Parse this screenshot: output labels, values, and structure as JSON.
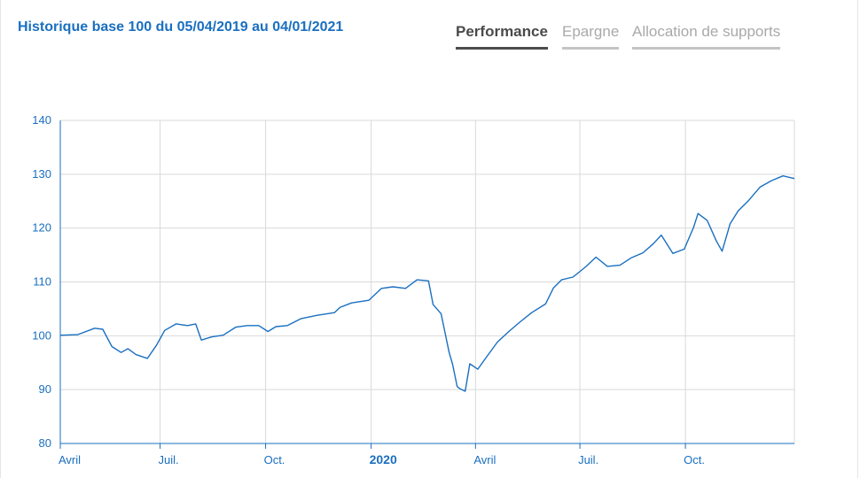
{
  "header": {
    "title": "Historique base 100 du 05/04/2019 au 04/01/2021",
    "tabs": [
      {
        "label": "Performance",
        "active": true
      },
      {
        "label": "Epargne",
        "active": false
      },
      {
        "label": "Allocation de supports",
        "active": false
      }
    ]
  },
  "colors": {
    "line": "#1a6fc0",
    "grid": "#d9d9d9",
    "axis_text": "#1a6fc0"
  },
  "chart_data": {
    "type": "line",
    "title": "Historique base 100 du 05/04/2019 au 04/01/2021",
    "xlabel": "",
    "ylabel": "",
    "ylim": [
      80,
      140
    ],
    "xlim": [
      "2019-04-05",
      "2021-01-04"
    ],
    "grid": true,
    "y_ticks": [
      80,
      90,
      100,
      110,
      120,
      130,
      140
    ],
    "x_ticks": [
      {
        "label": "Avril",
        "date": "2019-04-01",
        "bold": false
      },
      {
        "label": "Juil.",
        "date": "2019-07-01",
        "bold": false
      },
      {
        "label": "Oct.",
        "date": "2019-10-01",
        "bold": false
      },
      {
        "label": "2020",
        "date": "2020-01-01",
        "bold": true
      },
      {
        "label": "Avril",
        "date": "2020-04-01",
        "bold": false
      },
      {
        "label": "Juil.",
        "date": "2020-07-01",
        "bold": false
      },
      {
        "label": "Oct.",
        "date": "2020-10-01",
        "bold": false
      }
    ],
    "series": [
      {
        "x": [
          "2019-04-05",
          "2019-04-20",
          "2019-05-05",
          "2019-05-12",
          "2019-05-20",
          "2019-05-28",
          "2019-06-03",
          "2019-06-10",
          "2019-06-20",
          "2019-06-28",
          "2019-07-05",
          "2019-07-15",
          "2019-07-25",
          "2019-08-01",
          "2019-08-06",
          "2019-08-15",
          "2019-08-25",
          "2019-09-05",
          "2019-09-15",
          "2019-09-25",
          "2019-10-03",
          "2019-10-10",
          "2019-10-20",
          "2019-11-01",
          "2019-11-15",
          "2019-11-30",
          "2019-12-05",
          "2019-12-15",
          "2019-12-30",
          "2020-01-10",
          "2020-01-20",
          "2020-01-31",
          "2020-02-10",
          "2020-02-20",
          "2020-02-24",
          "2020-03-02",
          "2020-03-09",
          "2020-03-12",
          "2020-03-16",
          "2020-03-18",
          "2020-03-23",
          "2020-03-27",
          "2020-04-03",
          "2020-04-09",
          "2020-04-20",
          "2020-04-30",
          "2020-05-10",
          "2020-05-20",
          "2020-06-01",
          "2020-06-08",
          "2020-06-15",
          "2020-06-25",
          "2020-07-06",
          "2020-07-15",
          "2020-07-25",
          "2020-08-05",
          "2020-08-15",
          "2020-08-25",
          "2020-09-03",
          "2020-09-10",
          "2020-09-20",
          "2020-09-30",
          "2020-10-08",
          "2020-10-12",
          "2020-10-20",
          "2020-10-28",
          "2020-11-02",
          "2020-11-09",
          "2020-11-16",
          "2020-11-25",
          "2020-12-05",
          "2020-12-15",
          "2020-12-25",
          "2021-01-04"
        ],
        "y": [
          100.1,
          100.2,
          101.4,
          101.2,
          98,
          96.9,
          97.6,
          96.5,
          95.8,
          98.3,
          101,
          102.2,
          101.9,
          102.2,
          99.2,
          99.8,
          100.1,
          101.6,
          101.9,
          101.9,
          100.8,
          101.7,
          101.9,
          103.2,
          103.8,
          104.3,
          105.3,
          106.1,
          106.6,
          108.8,
          109.1,
          108.8,
          110.4,
          110.2,
          105.8,
          104.1,
          96.9,
          94.7,
          90.6,
          90.2,
          89.7,
          94.8,
          93.8,
          95.6,
          98.8,
          100.8,
          102.6,
          104.3,
          105.9,
          108.9,
          110.4,
          110.9,
          112.8,
          114.6,
          112.9,
          113.1,
          114.5,
          115.4,
          117.1,
          118.7,
          115.3,
          116.1,
          120.1,
          122.7,
          121.4,
          117.6,
          115.7,
          120.8,
          123.2,
          125.1,
          127.6,
          128.8,
          129.7,
          129.2
        ]
      }
    ]
  }
}
